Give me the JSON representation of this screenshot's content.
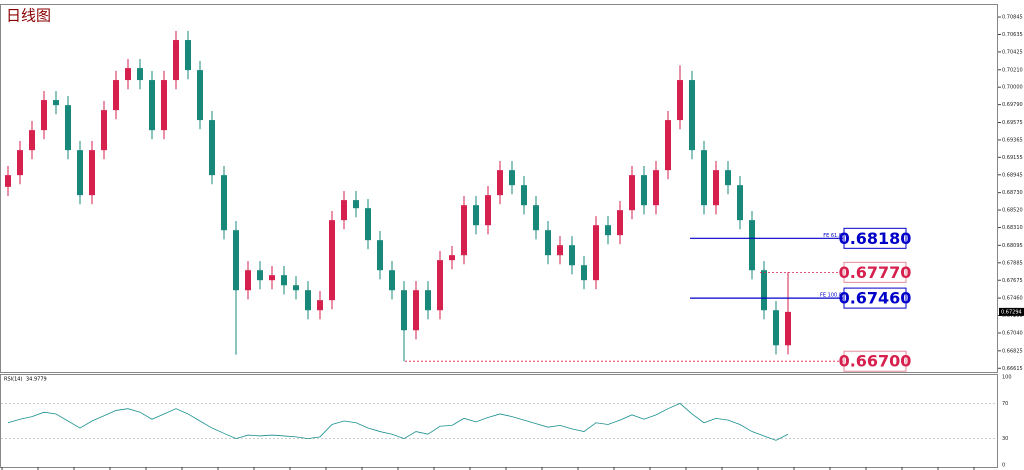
{
  "chart_data": [
    {
      "type": "candlestick",
      "title": "日线图",
      "up_color": "#d6204e",
      "down_color": "#17887a",
      "ohlc": [
        [
          0.688,
          0.69051,
          0.6869,
          0.68941
        ],
        [
          0.68941,
          0.69352,
          0.68831,
          0.69242
        ],
        [
          0.69242,
          0.69593,
          0.69132,
          0.69483
        ],
        [
          0.69483,
          0.69955,
          0.69373,
          0.69845
        ],
        [
          0.69845,
          0.69955,
          0.69674,
          0.69784
        ],
        [
          0.69784,
          0.69894,
          0.69132,
          0.69242
        ],
        [
          0.69242,
          0.69352,
          0.6859,
          0.687
        ],
        [
          0.687,
          0.69352,
          0.6859,
          0.69242
        ],
        [
          0.69242,
          0.69834,
          0.69132,
          0.69724
        ],
        [
          0.69724,
          0.70196,
          0.69614,
          0.70086
        ],
        [
          0.70086,
          0.7034,
          0.69976,
          0.7023
        ],
        [
          0.7023,
          0.7034,
          0.69976,
          0.70086
        ],
        [
          0.70086,
          0.70196,
          0.69373,
          0.69483
        ],
        [
          0.69483,
          0.70196,
          0.69373,
          0.70086
        ],
        [
          0.70086,
          0.70678,
          0.69976,
          0.70568
        ],
        [
          0.70568,
          0.70678,
          0.70096,
          0.70206
        ],
        [
          0.70206,
          0.70316,
          0.69494,
          0.69604
        ],
        [
          0.69604,
          0.69714,
          0.68831,
          0.68941
        ],
        [
          0.68941,
          0.69051,
          0.68168,
          0.68278
        ],
        [
          0.68278,
          0.68388,
          0.6678,
          0.67555
        ],
        [
          0.67555,
          0.67906,
          0.67445,
          0.67796
        ],
        [
          0.67796,
          0.67906,
          0.67566,
          0.67676
        ],
        [
          0.67676,
          0.67846,
          0.67566,
          0.67736
        ],
        [
          0.67736,
          0.67846,
          0.67505,
          0.67615
        ],
        [
          0.67615,
          0.67725,
          0.67445,
          0.67555
        ],
        [
          0.67555,
          0.67665,
          0.67204,
          0.67314
        ],
        [
          0.67314,
          0.67545,
          0.67204,
          0.67435
        ],
        [
          0.67435,
          0.68509,
          0.67325,
          0.68399
        ],
        [
          0.68399,
          0.6875,
          0.68289,
          0.6864
        ],
        [
          0.6864,
          0.6875,
          0.68433,
          0.68543
        ],
        [
          0.68543,
          0.68653,
          0.68048,
          0.68158
        ],
        [
          0.68158,
          0.68268,
          0.67686,
          0.67796
        ],
        [
          0.67796,
          0.67906,
          0.67445,
          0.67555
        ],
        [
          0.67555,
          0.67665,
          0.667,
          0.67073
        ],
        [
          0.67073,
          0.67665,
          0.66963,
          0.67555
        ],
        [
          0.67555,
          0.67665,
          0.67204,
          0.67314
        ],
        [
          0.67314,
          0.68027,
          0.67204,
          0.67917
        ],
        [
          0.67917,
          0.68087,
          0.67807,
          0.67977
        ],
        [
          0.67977,
          0.68689,
          0.67867,
          0.68579
        ],
        [
          0.68579,
          0.68689,
          0.68228,
          0.68338
        ],
        [
          0.68338,
          0.6881,
          0.68228,
          0.687
        ],
        [
          0.687,
          0.69111,
          0.6859,
          0.69001
        ],
        [
          0.69001,
          0.69111,
          0.6871,
          0.6882
        ],
        [
          0.6882,
          0.6893,
          0.68469,
          0.68579
        ],
        [
          0.68579,
          0.68689,
          0.68168,
          0.68278
        ],
        [
          0.68278,
          0.68388,
          0.67867,
          0.67977
        ],
        [
          0.67977,
          0.68207,
          0.67867,
          0.68097
        ],
        [
          0.68097,
          0.68207,
          0.67746,
          0.67856
        ],
        [
          0.67856,
          0.67966,
          0.67566,
          0.67676
        ],
        [
          0.67676,
          0.68448,
          0.67566,
          0.68338
        ],
        [
          0.68338,
          0.68448,
          0.68108,
          0.68218
        ],
        [
          0.68218,
          0.68629,
          0.68108,
          0.68519
        ],
        [
          0.68519,
          0.69051,
          0.68409,
          0.68941
        ],
        [
          0.68941,
          0.69051,
          0.68469,
          0.68579
        ],
        [
          0.68579,
          0.69111,
          0.68469,
          0.69001
        ],
        [
          0.69001,
          0.69714,
          0.68891,
          0.69604
        ],
        [
          0.69604,
          0.70265,
          0.69494,
          0.70086
        ],
        [
          0.70086,
          0.70196,
          0.69132,
          0.69242
        ],
        [
          0.69242,
          0.69352,
          0.68469,
          0.68579
        ],
        [
          0.68579,
          0.69111,
          0.68469,
          0.69001
        ],
        [
          0.69001,
          0.69111,
          0.6871,
          0.6882
        ],
        [
          0.6882,
          0.6893,
          0.68289,
          0.68399
        ],
        [
          0.68399,
          0.68509,
          0.67686,
          0.67796
        ],
        [
          0.67796,
          0.67906,
          0.67204,
          0.67314
        ],
        [
          0.67314,
          0.67424,
          0.66782,
          0.66892
        ],
        [
          0.66892,
          0.6777,
          0.66782,
          0.67294
        ]
      ],
      "ylim": [
        0.6657,
        0.7099
      ],
      "yticks": [
        0.70845,
        0.70635,
        {
          "value": 0.70425,
          "label": "0.70425"
        },
        {
          "value": 0.7021,
          "label": "0.70210"
        },
        {
          "value": 0.7,
          "label": "0.70000"
        },
        {
          "value": 0.6979,
          "label": "0.69790"
        },
        0.69575,
        0.69365,
        0.69155,
        0.68945,
        {
          "value": 0.6873,
          "label": "0.68730"
        },
        {
          "value": 0.6852,
          "label": "0.68520"
        },
        {
          "value": 0.6831,
          "label": "0.68310"
        },
        0.68095,
        0.67885,
        0.67675,
        {
          "value": 0.6746,
          "label": "0.67460"
        },
        {
          "value": 0.6725,
          "label": "0.67250"
        },
        {
          "value": 0.6704,
          "label": "0.67040"
        },
        0.66825,
        0.66615
      ],
      "levels": [
        {
          "price": {
            "value": 0.6818,
            "label": "0.68180"
          },
          "tag": "FE 61.8",
          "color": "#0000c8",
          "style": "solid"
        },
        {
          "price": {
            "value": 0.6777,
            "label": "0.67770"
          },
          "color": "#d6204e",
          "style": "dashed"
        },
        {
          "price": {
            "value": 0.6746,
            "label": "0.67460"
          },
          "tag": "FE 100.0",
          "color": "#0000c8",
          "style": "solid"
        },
        {
          "price": {
            "value": 0.667,
            "label": "0.66700"
          },
          "color": "#d6204e",
          "style": "dashed"
        }
      ]
    },
    {
      "type": "line",
      "name": "RSI(14)",
      "color": "#1a8f8f",
      "values": [
        48,
        52,
        55,
        60,
        58,
        50,
        42,
        50,
        56,
        62,
        64,
        60,
        52,
        58,
        64,
        58,
        50,
        42,
        36,
        30,
        34,
        33,
        34,
        33,
        32,
        30,
        32,
        46,
        50,
        48,
        42,
        38,
        35,
        30,
        38,
        35,
        44,
        45,
        53,
        49,
        54,
        58,
        55,
        51,
        47,
        43,
        45,
        41,
        38,
        48,
        46,
        51,
        57,
        52,
        57,
        64,
        70,
        58,
        48,
        53,
        51,
        46,
        38,
        33,
        28,
        34.9779
      ],
      "ylim": [
        0,
        100
      ],
      "yticks": [
        100,
        70,
        30,
        0
      ]
    }
  ]
}
